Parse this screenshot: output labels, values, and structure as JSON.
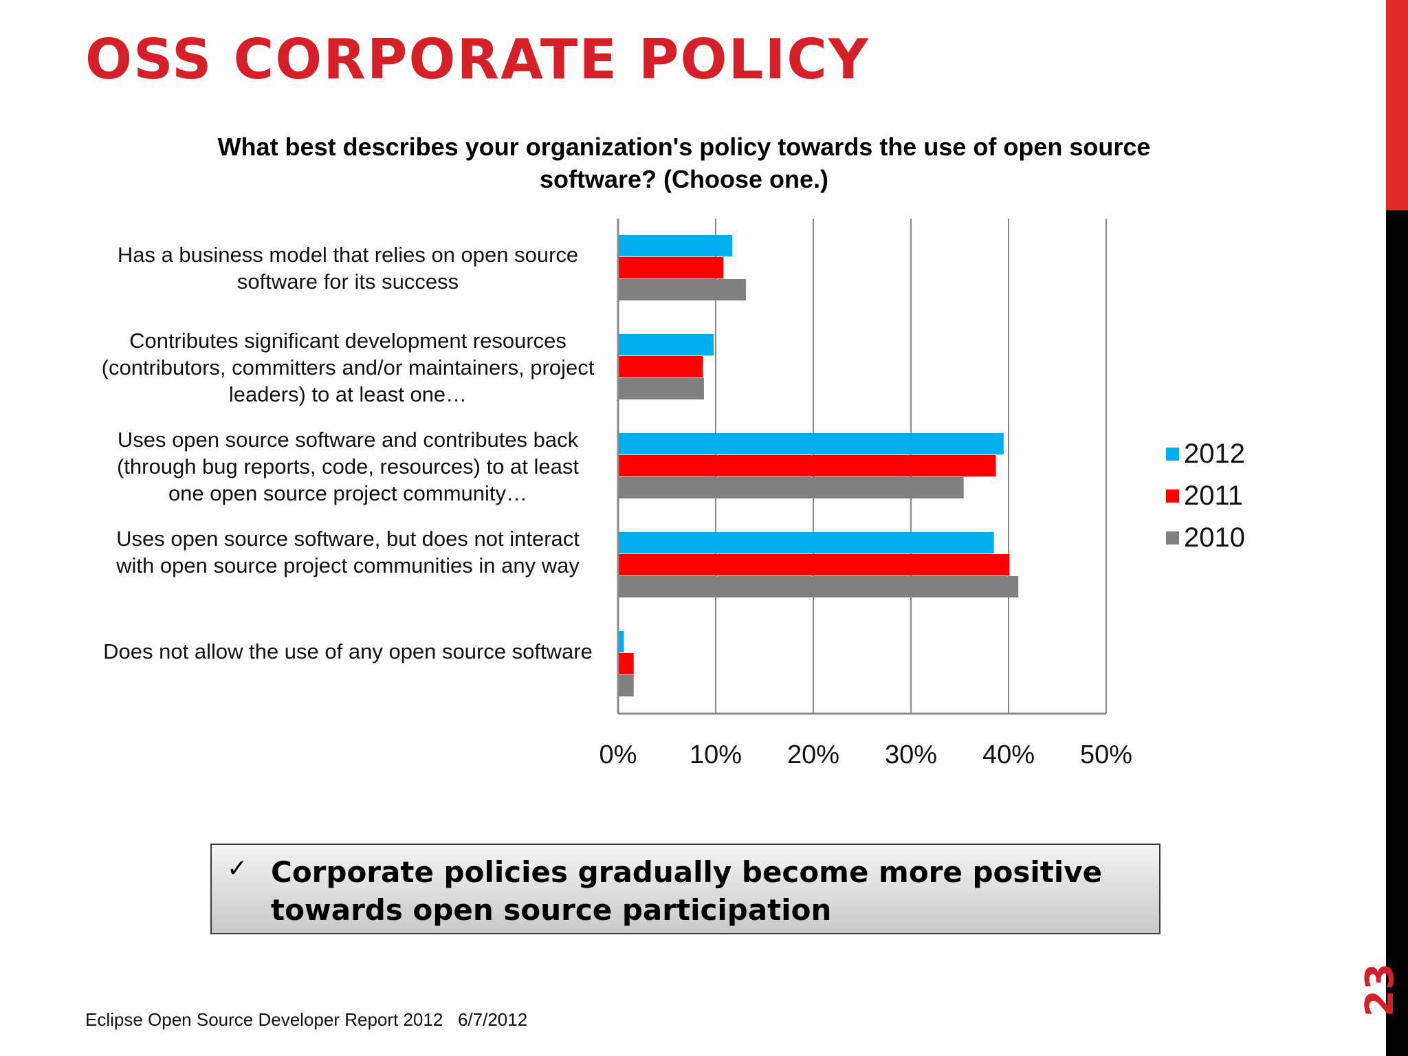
{
  "slide": {
    "title": "OSS CORPORATE POLICY",
    "page_number": "23",
    "footer": "Eclipse Open Source Developer Report 2012   6/7/2012",
    "callout": {
      "check": "✓",
      "text": "Corporate policies gradually become more positive towards open source participation"
    },
    "colors": {
      "title": "#d42028",
      "sidebar_top": "#e02a2a",
      "sidebar_bottom": "#000000"
    }
  },
  "chart_data": {
    "type": "bar",
    "orientation": "horizontal",
    "title": "What best describes your organization's policy towards the use of open source software? (Choose one.)",
    "categories": [
      "Has a business model that relies on open source software for its success",
      "Contributes significant development resources (contributors, committers and/or maintainers, project leaders) to at least one…",
      "Uses open source software and contributes back (through bug reports, code, resources) to at least one open source project community…",
      "Uses open source software, but does not interact with open source project communities in any way",
      "Does not allow the use of any open source software"
    ],
    "series": [
      {
        "name": "2012",
        "color": "#00aeef",
        "values": [
          11.7,
          9.8,
          39.5,
          38.5,
          0.6
        ]
      },
      {
        "name": "2011",
        "color": "#ff0000",
        "values": [
          10.8,
          8.7,
          38.7,
          40.1,
          1.6
        ]
      },
      {
        "name": "2010",
        "color": "#808080",
        "values": [
          13.1,
          8.8,
          35.4,
          41.0,
          1.6
        ]
      }
    ],
    "xlim": [
      0,
      50
    ],
    "x_ticks": [
      "0%",
      "10%",
      "20%",
      "30%",
      "40%",
      "50%"
    ],
    "grid": true,
    "legend_position": "right"
  }
}
